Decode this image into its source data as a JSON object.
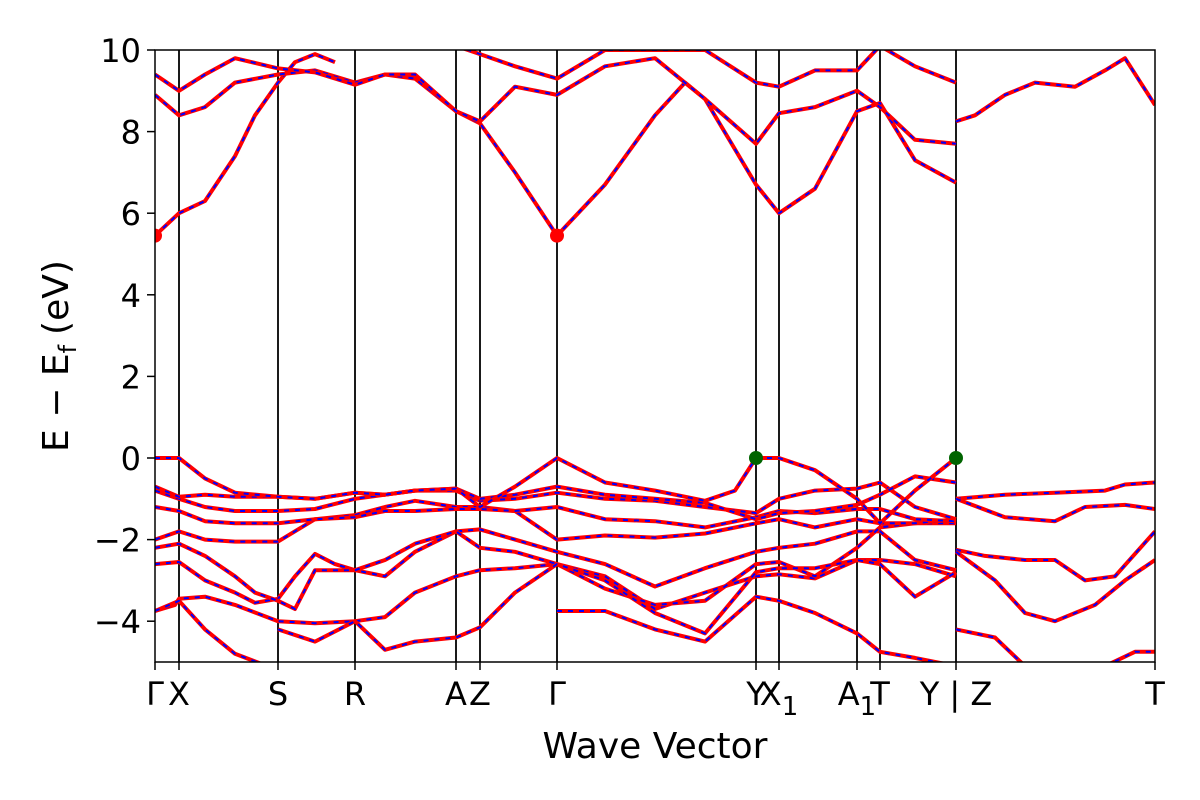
{
  "chart_data": {
    "type": "line",
    "title": "",
    "xlabel": "Wave Vector",
    "ylabel": "E − E",
    "ylabel_sub": "f",
    "ylabel_unit": "(eV)",
    "ylim": [
      -5,
      10
    ],
    "yticks": [
      {
        "value": 10,
        "label": "10"
      },
      {
        "value": 8,
        "label": "8"
      },
      {
        "value": 6,
        "label": "6"
      },
      {
        "value": 4,
        "label": "4"
      },
      {
        "value": 2,
        "label": "2"
      },
      {
        "value": 0,
        "label": "0"
      },
      {
        "value": -2,
        "label": "−2"
      },
      {
        "value": -4,
        "label": "−4"
      }
    ],
    "xlim": [
      0,
      1
    ],
    "kpoints": [
      {
        "label": "Γ",
        "x": 0.0
      },
      {
        "label": "X",
        "x": 0.024
      },
      {
        "label": "S",
        "x": 0.123
      },
      {
        "label": "R",
        "x": 0.2
      },
      {
        "label": "A",
        "x": 0.301
      },
      {
        "label": "Z",
        "x": 0.325
      },
      {
        "label": "Γ",
        "x": 0.402
      },
      {
        "label": "Y",
        "x": 0.601
      },
      {
        "label": "X",
        "sub": "1",
        "x": 0.624
      },
      {
        "label": "A",
        "sub": "1",
        "x": 0.702
      },
      {
        "label": "T",
        "x": 0.725
      },
      {
        "label": "Y | Z",
        "x": 0.801
      },
      {
        "label": "T",
        "x": 1.0
      }
    ],
    "series_colors": {
      "solid": "#ff0000",
      "dashed": "#0000ff"
    },
    "bands": [
      [
        [
          0,
          -3.75
        ],
        [
          0.02,
          -3.6
        ],
        [
          0.024,
          -3.45
        ],
        [
          0.05,
          -3.4
        ],
        [
          0.08,
          -3.6
        ],
        [
          0.123,
          -4.0
        ],
        [
          0.16,
          -4.05
        ],
        [
          0.2,
          -4.0
        ],
        [
          0.23,
          -3.9
        ],
        [
          0.26,
          -3.3
        ],
        [
          0.301,
          -2.9
        ],
        [
          0.325,
          -2.75
        ],
        [
          0.36,
          -2.7
        ],
        [
          0.402,
          -2.6
        ],
        [
          0.45,
          -2.9
        ],
        [
          0.5,
          -3.7
        ],
        [
          0.55,
          -3.3
        ],
        [
          0.601,
          -2.9
        ],
        [
          0.624,
          -2.85
        ],
        [
          0.66,
          -2.95
        ],
        [
          0.702,
          -2.5
        ],
        [
          0.725,
          -2.5
        ],
        [
          0.76,
          -2.6
        ],
        [
          0.801,
          -2.9
        ]
      ],
      [
        [
          0,
          -2.6
        ],
        [
          0.024,
          -2.55
        ],
        [
          0.05,
          -3.0
        ],
        [
          0.08,
          -3.3
        ],
        [
          0.1,
          -3.55
        ],
        [
          0.123,
          -3.45
        ],
        [
          0.14,
          -2.9
        ],
        [
          0.16,
          -2.35
        ],
        [
          0.18,
          -2.6
        ],
        [
          0.2,
          -2.75
        ],
        [
          0.23,
          -2.9
        ],
        [
          0.26,
          -2.3
        ],
        [
          0.301,
          -1.8
        ],
        [
          0.325,
          -1.75
        ],
        [
          0.36,
          -2.0
        ],
        [
          0.402,
          -2.3
        ],
        [
          0.45,
          -2.6
        ],
        [
          0.5,
          -3.15
        ],
        [
          0.55,
          -2.7
        ],
        [
          0.601,
          -2.3
        ],
        [
          0.624,
          -2.2
        ],
        [
          0.66,
          -2.1
        ],
        [
          0.702,
          -1.8
        ],
        [
          0.725,
          -1.8
        ],
        [
          0.76,
          -2.5
        ],
        [
          0.801,
          -2.75
        ]
      ],
      [
        [
          0,
          -2.2
        ],
        [
          0.024,
          -2.1
        ],
        [
          0.05,
          -2.4
        ],
        [
          0.08,
          -2.9
        ],
        [
          0.1,
          -3.3
        ],
        [
          0.123,
          -3.5
        ],
        [
          0.14,
          -3.7
        ],
        [
          0.16,
          -2.75
        ],
        [
          0.2,
          -2.75
        ],
        [
          0.23,
          -2.5
        ],
        [
          0.26,
          -2.1
        ],
        [
          0.301,
          -1.8
        ],
        [
          0.325,
          -2.2
        ],
        [
          0.36,
          -2.3
        ],
        [
          0.402,
          -2.6
        ],
        [
          0.45,
          -3.2
        ],
        [
          0.5,
          -3.6
        ],
        [
          0.55,
          -3.5
        ],
        [
          0.601,
          -2.6
        ],
        [
          0.624,
          -2.55
        ],
        [
          0.66,
          -2.9
        ],
        [
          0.702,
          -2.2
        ],
        [
          0.725,
          -1.7
        ],
        [
          0.76,
          -1.6
        ],
        [
          0.801,
          -1.6
        ]
      ],
      [
        [
          0,
          -2.0
        ],
        [
          0.024,
          -1.8
        ],
        [
          0.05,
          -2.0
        ],
        [
          0.08,
          -2.05
        ],
        [
          0.123,
          -2.05
        ],
        [
          0.16,
          -1.5
        ],
        [
          0.2,
          -1.4
        ],
        [
          0.23,
          -1.2
        ],
        [
          0.26,
          -1.05
        ],
        [
          0.301,
          -1.2
        ],
        [
          0.325,
          -1.2
        ],
        [
          0.36,
          -1.3
        ],
        [
          0.402,
          -2.0
        ],
        [
          0.45,
          -1.9
        ],
        [
          0.5,
          -1.95
        ],
        [
          0.55,
          -1.85
        ],
        [
          0.601,
          -1.6
        ],
        [
          0.624,
          -1.5
        ],
        [
          0.66,
          -1.7
        ],
        [
          0.702,
          -1.5
        ],
        [
          0.725,
          -1.6
        ],
        [
          0.76,
          -1.6
        ],
        [
          0.801,
          -1.5
        ]
      ],
      [
        [
          0,
          -1.2
        ],
        [
          0.024,
          -1.3
        ],
        [
          0.05,
          -1.55
        ],
        [
          0.08,
          -1.6
        ],
        [
          0.123,
          -1.6
        ],
        [
          0.16,
          -1.5
        ],
        [
          0.2,
          -1.45
        ],
        [
          0.23,
          -1.3
        ],
        [
          0.26,
          -1.3
        ],
        [
          0.301,
          -1.25
        ],
        [
          0.325,
          -1.25
        ],
        [
          0.36,
          -1.3
        ],
        [
          0.402,
          -1.2
        ],
        [
          0.45,
          -1.5
        ],
        [
          0.5,
          -1.55
        ],
        [
          0.55,
          -1.7
        ],
        [
          0.601,
          -1.45
        ],
        [
          0.624,
          -1.3
        ],
        [
          0.66,
          -1.35
        ],
        [
          0.702,
          -1.25
        ],
        [
          0.725,
          -1.25
        ],
        [
          0.76,
          -1.5
        ],
        [
          0.801,
          -1.55
        ]
      ],
      [
        [
          0,
          -0.8
        ],
        [
          0.024,
          -1.0
        ],
        [
          0.05,
          -1.2
        ],
        [
          0.08,
          -1.3
        ],
        [
          0.123,
          -1.3
        ],
        [
          0.16,
          -1.25
        ],
        [
          0.2,
          -1.0
        ],
        [
          0.23,
          -0.9
        ],
        [
          0.26,
          -0.8
        ],
        [
          0.301,
          -0.8
        ],
        [
          0.325,
          -1.05
        ],
        [
          0.36,
          -1.0
        ],
        [
          0.402,
          -0.85
        ],
        [
          0.45,
          -1.0
        ],
        [
          0.5,
          -1.05
        ],
        [
          0.55,
          -1.2
        ],
        [
          0.601,
          -1.35
        ],
        [
          0.624,
          -1.0
        ],
        [
          0.66,
          -0.8
        ],
        [
          0.702,
          -0.75
        ],
        [
          0.725,
          -0.6
        ],
        [
          0.76,
          -1.2
        ],
        [
          0.801,
          -1.5
        ]
      ],
      [
        [
          0,
          -0.7
        ],
        [
          0.024,
          -0.95
        ],
        [
          0.05,
          -0.9
        ],
        [
          0.08,
          -0.95
        ],
        [
          0.123,
          -0.95
        ],
        [
          0.16,
          -1.0
        ],
        [
          0.2,
          -0.85
        ],
        [
          0.23,
          -0.9
        ],
        [
          0.26,
          -0.8
        ],
        [
          0.301,
          -0.75
        ],
        [
          0.325,
          -1.0
        ],
        [
          0.36,
          -0.9
        ],
        [
          0.402,
          -0.7
        ],
        [
          0.45,
          -0.9
        ],
        [
          0.5,
          -1.0
        ],
        [
          0.55,
          -1.1
        ],
        [
          0.601,
          -1.5
        ],
        [
          0.624,
          -1.35
        ],
        [
          0.66,
          -1.3
        ],
        [
          0.702,
          -1.15
        ],
        [
          0.725,
          -0.9
        ],
        [
          0.76,
          -0.45
        ],
        [
          0.801,
          -0.6
        ]
      ],
      [
        [
          0,
          0
        ],
        [
          0.024,
          0
        ],
        [
          0.05,
          -0.5
        ],
        [
          0.08,
          -0.85
        ],
        [
          0.123,
          -0.95
        ],
        [
          0.16,
          -1.0
        ],
        [
          0.2,
          -0.85
        ],
        [
          0.23,
          -0.9
        ],
        [
          0.26,
          -0.8
        ],
        [
          0.301,
          -0.75
        ],
        [
          0.325,
          -1.2
        ],
        [
          0.36,
          -0.7
        ],
        [
          0.402,
          0
        ],
        [
          0.45,
          -0.6
        ],
        [
          0.5,
          -0.8
        ],
        [
          0.55,
          -1.05
        ],
        [
          0.58,
          -0.8
        ],
        [
          0.601,
          0
        ],
        [
          0.624,
          0
        ],
        [
          0.66,
          -0.3
        ],
        [
          0.702,
          -1.0
        ],
        [
          0.725,
          -1.6
        ],
        [
          0.76,
          -0.8
        ],
        [
          0.801,
          0
        ]
      ],
      [
        [
          0,
          -3.75
        ],
        [
          0.024,
          -3.5
        ],
        [
          0.05,
          -4.2
        ],
        [
          0.08,
          -4.8
        ],
        [
          0.123,
          -5.2
        ]
      ],
      [
        [
          0.123,
          -4.2
        ],
        [
          0.16,
          -4.5
        ],
        [
          0.2,
          -4.0
        ],
        [
          0.23,
          -4.7
        ],
        [
          0.26,
          -4.5
        ],
        [
          0.301,
          -4.4
        ],
        [
          0.325,
          -4.15
        ],
        [
          0.36,
          -3.3
        ],
        [
          0.402,
          -2.6
        ],
        [
          0.45,
          -3.0
        ],
        [
          0.5,
          -3.8
        ],
        [
          0.55,
          -4.3
        ],
        [
          0.601,
          -2.8
        ],
        [
          0.624,
          -2.7
        ],
        [
          0.66,
          -2.7
        ],
        [
          0.702,
          -2.5
        ],
        [
          0.725,
          -2.6
        ],
        [
          0.76,
          -3.4
        ],
        [
          0.801,
          -2.8
        ]
      ],
      [
        [
          0.402,
          -3.75
        ],
        [
          0.45,
          -3.75
        ],
        [
          0.5,
          -4.2
        ],
        [
          0.55,
          -4.5
        ],
        [
          0.601,
          -3.4
        ],
        [
          0.624,
          -3.5
        ],
        [
          0.66,
          -3.8
        ],
        [
          0.702,
          -4.3
        ],
        [
          0.725,
          -4.75
        ],
        [
          0.76,
          -4.9
        ],
        [
          0.801,
          -5.1
        ]
      ],
      [
        [
          0,
          5.45
        ],
        [
          0.024,
          6.0
        ],
        [
          0.05,
          6.3
        ],
        [
          0.08,
          7.4
        ],
        [
          0.1,
          8.4
        ],
        [
          0.123,
          9.2
        ],
        [
          0.14,
          9.7
        ],
        [
          0.16,
          9.9
        ],
        [
          0.18,
          9.7
        ]
      ],
      [
        [
          0,
          8.9
        ],
        [
          0.024,
          8.4
        ],
        [
          0.05,
          8.6
        ],
        [
          0.08,
          9.2
        ],
        [
          0.123,
          9.4
        ],
        [
          0.16,
          9.5
        ],
        [
          0.2,
          9.2
        ],
        [
          0.23,
          9.4
        ],
        [
          0.26,
          9.3
        ],
        [
          0.301,
          8.5
        ],
        [
          0.325,
          8.2
        ],
        [
          0.36,
          7.0
        ],
        [
          0.402,
          5.45
        ],
        [
          0.45,
          6.7
        ],
        [
          0.5,
          8.4
        ],
        [
          0.53,
          9.2
        ],
        [
          0.55,
          8.8
        ],
        [
          0.601,
          6.7
        ],
        [
          0.624,
          6.0
        ],
        [
          0.66,
          6.6
        ],
        [
          0.702,
          8.5
        ],
        [
          0.725,
          8.7
        ],
        [
          0.76,
          7.3
        ],
        [
          0.801,
          6.75
        ]
      ],
      [
        [
          0,
          9.4
        ],
        [
          0.024,
          9.0
        ],
        [
          0.05,
          9.4
        ],
        [
          0.08,
          9.8
        ],
        [
          0.123,
          9.55
        ],
        [
          0.16,
          9.45
        ],
        [
          0.2,
          9.15
        ],
        [
          0.23,
          9.4
        ],
        [
          0.26,
          9.4
        ],
        [
          0.301,
          8.5
        ],
        [
          0.325,
          8.25
        ],
        [
          0.36,
          9.1
        ],
        [
          0.402,
          8.9
        ],
        [
          0.45,
          9.6
        ],
        [
          0.5,
          9.8
        ],
        [
          0.55,
          8.8
        ],
        [
          0.601,
          7.7
        ],
        [
          0.624,
          8.45
        ],
        [
          0.66,
          8.6
        ],
        [
          0.702,
          9.0
        ],
        [
          0.725,
          8.6
        ],
        [
          0.76,
          7.8
        ],
        [
          0.801,
          7.7
        ]
      ],
      [
        [
          0.301,
          10.1
        ],
        [
          0.325,
          9.9
        ],
        [
          0.36,
          9.6
        ],
        [
          0.402,
          9.3
        ],
        [
          0.45,
          10.0
        ],
        [
          0.55,
          10.0
        ],
        [
          0.601,
          9.2
        ],
        [
          0.624,
          9.1
        ],
        [
          0.66,
          9.5
        ],
        [
          0.702,
          9.5
        ],
        [
          0.725,
          10.1
        ],
        [
          0.76,
          9.6
        ],
        [
          0.801,
          9.2
        ]
      ],
      [
        [
          0.801,
          8.25
        ],
        [
          0.82,
          8.4
        ],
        [
          0.85,
          8.9
        ],
        [
          0.88,
          9.2
        ],
        [
          0.92,
          9.1
        ],
        [
          0.95,
          9.5
        ],
        [
          0.97,
          9.8
        ],
        [
          1.0,
          8.65
        ]
      ],
      [
        [
          0.801,
          -1.0
        ],
        [
          0.85,
          -0.9
        ],
        [
          0.9,
          -0.85
        ],
        [
          0.95,
          -0.8
        ],
        [
          0.97,
          -0.65
        ],
        [
          1.0,
          -0.6
        ]
      ],
      [
        [
          0.801,
          -1.0
        ],
        [
          0.85,
          -1.45
        ],
        [
          0.9,
          -1.55
        ],
        [
          0.93,
          -1.2
        ],
        [
          0.97,
          -1.15
        ],
        [
          1.0,
          -1.25
        ]
      ],
      [
        [
          0.801,
          -2.25
        ],
        [
          0.83,
          -2.4
        ],
        [
          0.87,
          -2.5
        ],
        [
          0.9,
          -2.5
        ],
        [
          0.93,
          -3.0
        ],
        [
          0.96,
          -2.9
        ],
        [
          1.0,
          -1.8
        ]
      ],
      [
        [
          0.801,
          -2.3
        ],
        [
          0.84,
          -3.0
        ],
        [
          0.87,
          -3.8
        ],
        [
          0.9,
          -4.0
        ],
        [
          0.94,
          -3.6
        ],
        [
          0.97,
          -3.0
        ],
        [
          1.0,
          -2.5
        ]
      ],
      [
        [
          0.801,
          -4.2
        ],
        [
          0.84,
          -4.4
        ],
        [
          0.87,
          -5.1
        ]
      ],
      [
        [
          0.95,
          -5.1
        ],
        [
          0.98,
          -4.75
        ],
        [
          1.0,
          -4.75
        ]
      ]
    ],
    "markers": [
      {
        "x": 0.0,
        "y": 5.45,
        "color": "#ff0000"
      },
      {
        "x": 0.402,
        "y": 5.45,
        "color": "#ff0000"
      },
      {
        "x": 0.601,
        "y": 0.0,
        "color": "#006400"
      },
      {
        "x": 0.801,
        "y": 0.0,
        "color": "#006400"
      }
    ]
  }
}
